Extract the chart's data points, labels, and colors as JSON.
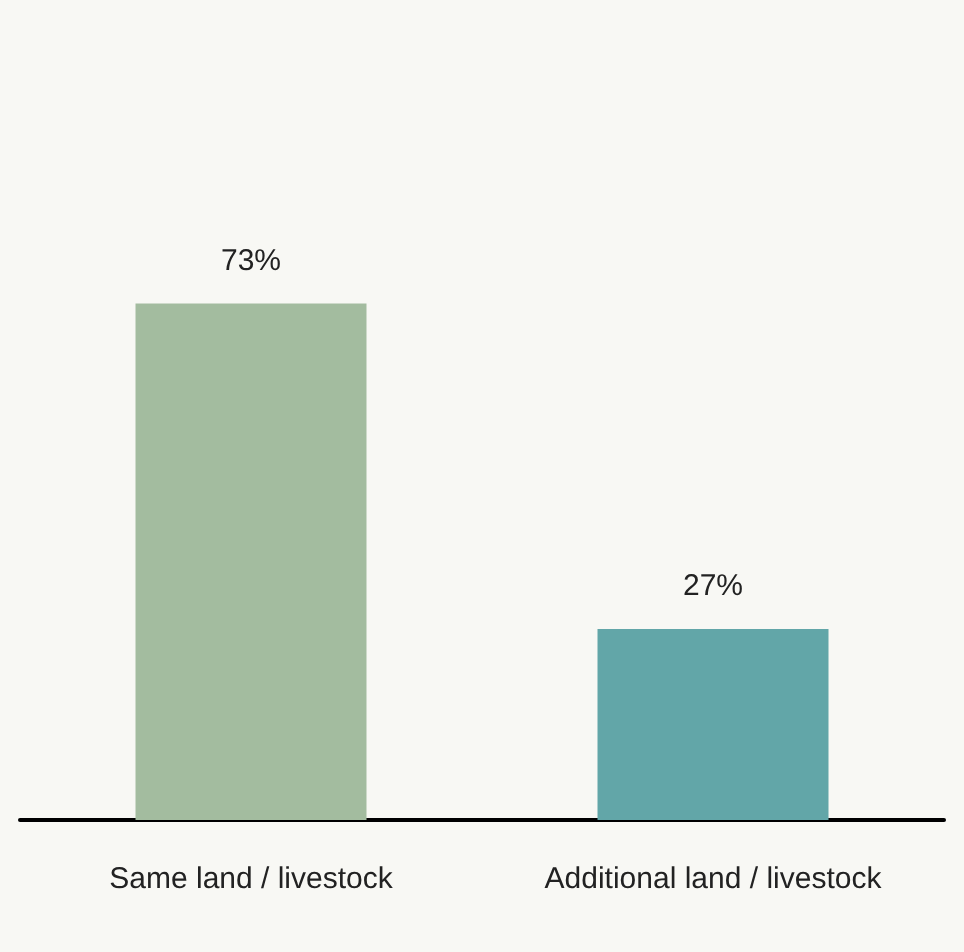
{
  "chart_data": {
    "type": "bar",
    "categories": [
      "Same land / livestock",
      "Additional land / livestock"
    ],
    "values": [
      73,
      27
    ],
    "colors": [
      "#a3bc9f",
      "#62a6a8"
    ],
    "value_labels": [
      "73%",
      "27%"
    ],
    "tick_labels": "x"
  }
}
